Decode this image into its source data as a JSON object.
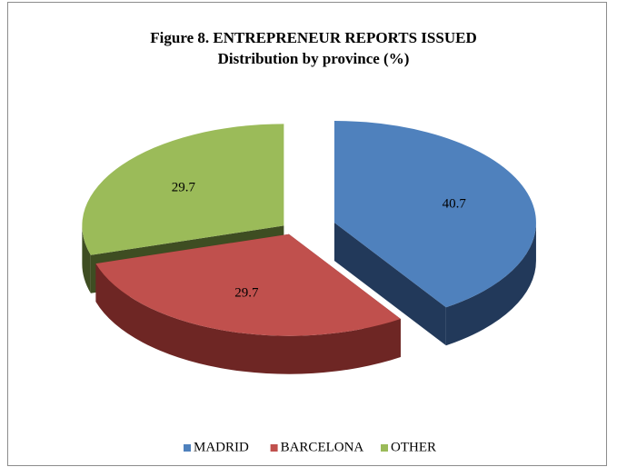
{
  "chart_data": {
    "type": "pie3d",
    "title": "Figure 8. ENTREPRENEUR REPORTS ISSUED",
    "subtitle": "Distribution by province (%)",
    "categories": [
      "MADRID",
      "BARCELONA",
      "OTHER"
    ],
    "values": [
      40.7,
      29.7,
      29.7
    ],
    "colors": [
      "#4f81bd",
      "#c0504d",
      "#9bbb59"
    ],
    "side_colors": [
      "#22395a",
      "#6e2624",
      "#3e4d22"
    ],
    "legend": "bottom"
  }
}
